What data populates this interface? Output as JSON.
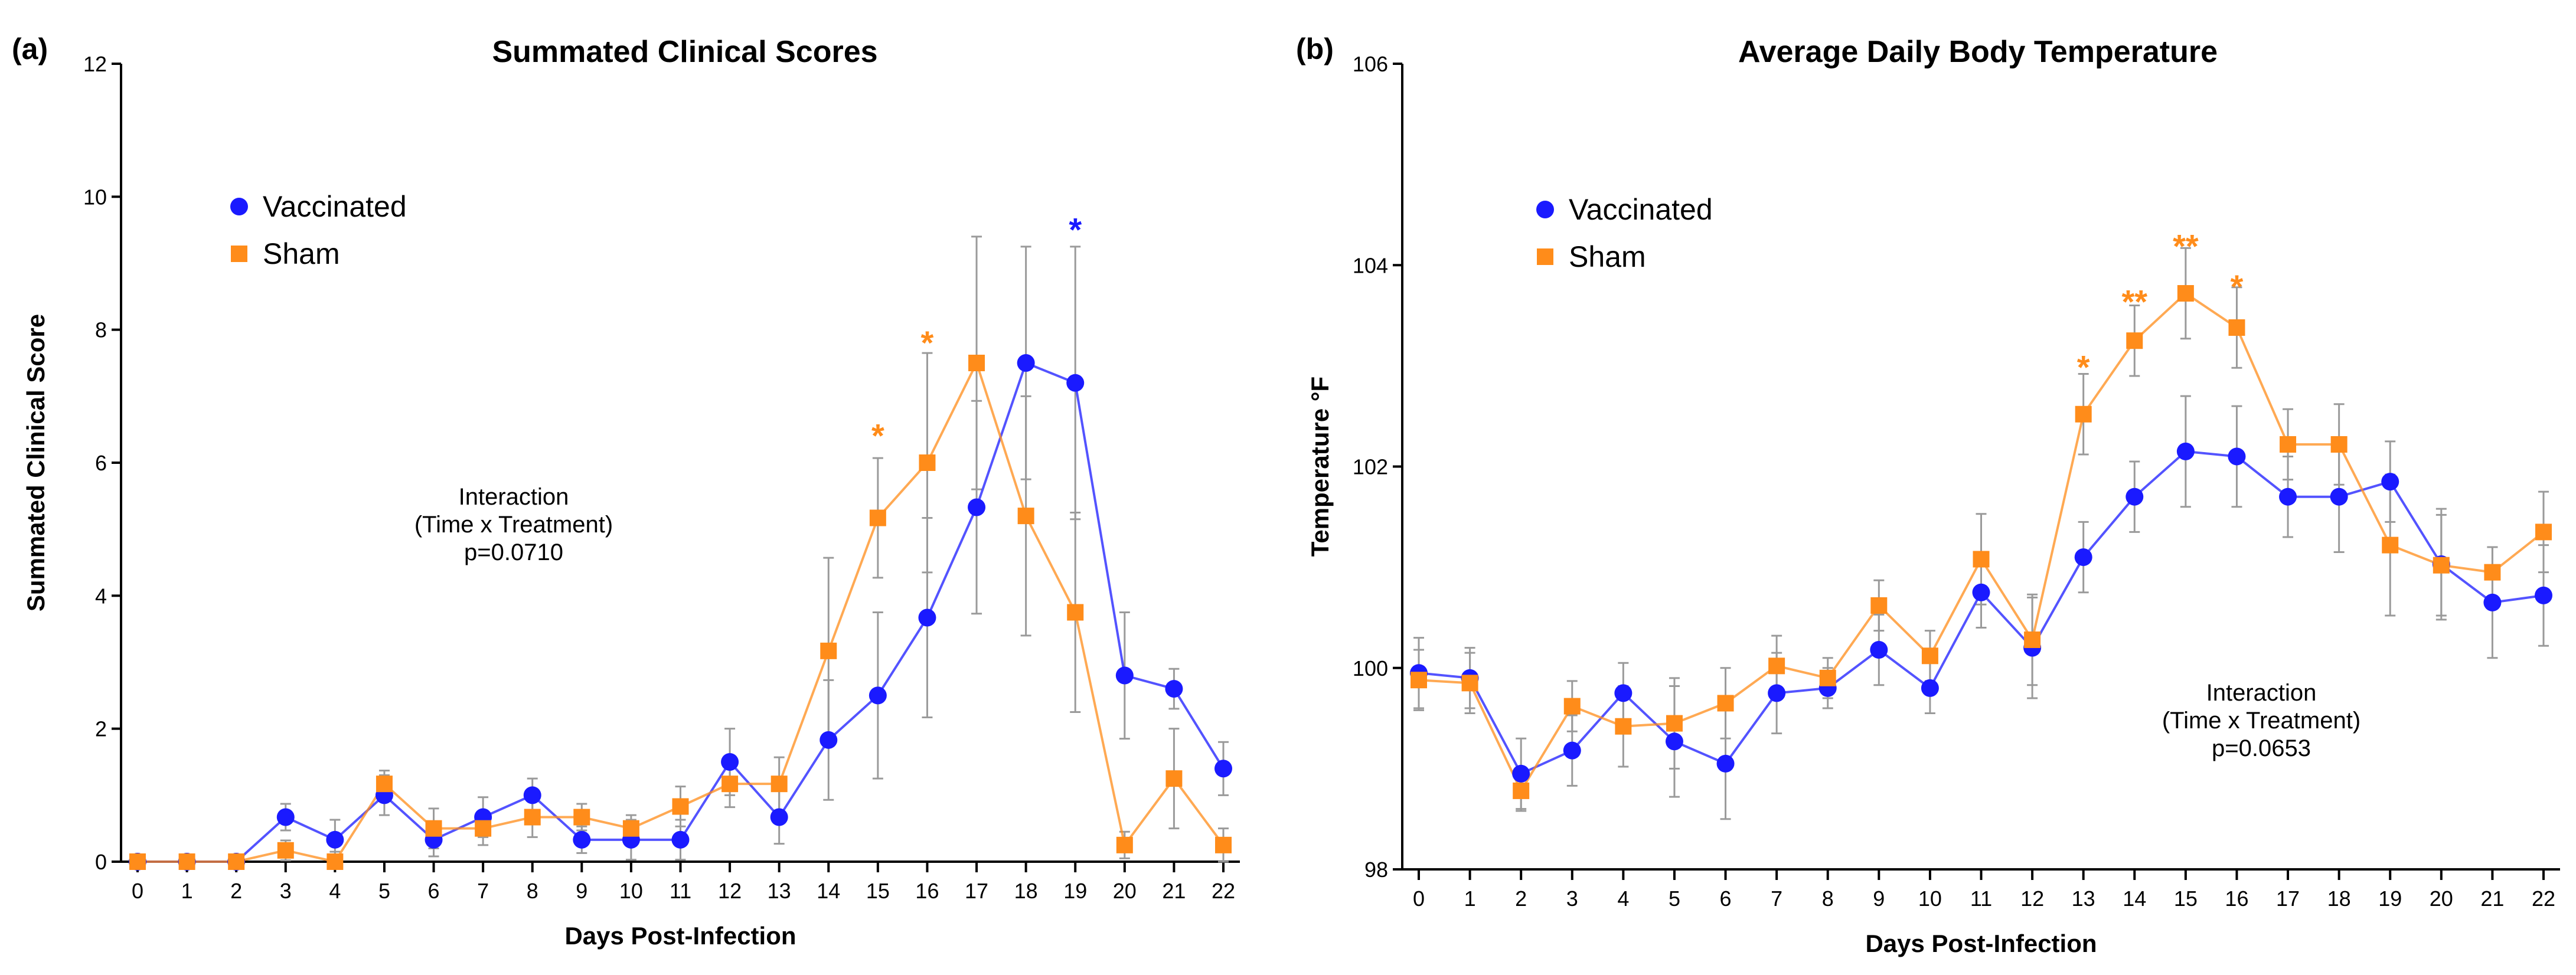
{
  "chart_data": [
    {
      "type": "line",
      "panel": "(a)",
      "title": "Summated Clinical Scores",
      "xlabel": "Days Post-Infection",
      "ylabel": "Summated Clinical Score",
      "x": [
        0,
        1,
        2,
        3,
        4,
        5,
        6,
        7,
        8,
        9,
        10,
        11,
        12,
        13,
        14,
        15,
        16,
        17,
        18,
        19,
        20,
        21,
        22
      ],
      "xlim": [
        0,
        22
      ],
      "ylim": [
        0,
        12
      ],
      "yticks": [
        0,
        2,
        4,
        6,
        8,
        10,
        12
      ],
      "series": [
        {
          "name": "Vaccinated",
          "color": "#1a1aff",
          "marker": "circle",
          "values": [
            0,
            0,
            0,
            0.67,
            0.33,
            1.0,
            0.33,
            0.67,
            1.0,
            0.33,
            0.33,
            0.33,
            1.5,
            0.67,
            1.83,
            2.5,
            3.67,
            5.33,
            7.5,
            7.2,
            2.8,
            2.6,
            1.4
          ],
          "errors": [
            0,
            0,
            0,
            0.2,
            0.3,
            0.3,
            0.25,
            0.3,
            0.25,
            0.2,
            0.3,
            0.3,
            0.5,
            0.4,
            0.9,
            1.25,
            1.5,
            1.6,
            1.75,
            2.05,
            0.95,
            0.3,
            0.4
          ]
        },
        {
          "name": "Sham",
          "color": "#ff8c1a",
          "marker": "square",
          "values": [
            0,
            0,
            0,
            0.17,
            0,
            1.17,
            0.5,
            0.5,
            0.67,
            0.67,
            0.5,
            0.83,
            1.17,
            1.17,
            3.17,
            5.17,
            6.0,
            7.5,
            5.2,
            3.75,
            0.25,
            1.25,
            0.25
          ],
          "errors": [
            0,
            0,
            0,
            0.15,
            0.15,
            0.2,
            0.3,
            0.25,
            0.3,
            0.2,
            0.2,
            0.3,
            0.35,
            0.4,
            1.4,
            0.9,
            1.65,
            1.9,
            1.8,
            1.5,
            0.2,
            0.75,
            0.25
          ]
        }
      ],
      "significance": [
        {
          "x": 15,
          "y": 6.5,
          "text": "*",
          "series": "Sham"
        },
        {
          "x": 16,
          "y": 7.9,
          "text": "*",
          "series": "Sham"
        },
        {
          "x": 19,
          "y": 9.6,
          "text": "*",
          "series": "Vaccinated"
        }
      ],
      "annotation": [
        "Interaction",
        "(Time x Treatment)",
        "p=0.0710"
      ],
      "legend": "top-left"
    },
    {
      "type": "line",
      "panel": "(b)",
      "title": "Average Daily Body Temperature",
      "xlabel": "Days Post-Infection",
      "ylabel": "Temperature °F",
      "x": [
        0,
        1,
        2,
        3,
        4,
        5,
        6,
        7,
        8,
        9,
        10,
        11,
        12,
        13,
        14,
        15,
        16,
        17,
        18,
        19,
        20,
        21,
        22
      ],
      "xlim": [
        0,
        22
      ],
      "ylim": [
        98,
        106
      ],
      "yticks": [
        98,
        100,
        102,
        104,
        106
      ],
      "series": [
        {
          "name": "Vaccinated",
          "color": "#1a1aff",
          "marker": "circle",
          "values": [
            99.95,
            99.9,
            98.95,
            99.18,
            99.75,
            99.27,
            99.05,
            99.75,
            99.8,
            100.18,
            99.8,
            100.75,
            100.2,
            101.1,
            101.7,
            102.15,
            102.1,
            101.7,
            101.7,
            101.85,
            101.03,
            100.65,
            100.72
          ],
          "errors": [
            0.35,
            0.3,
            0.35,
            0.35,
            0.3,
            0.55,
            0.55,
            0.4,
            0.2,
            0.35,
            0.25,
            0.35,
            0.5,
            0.35,
            0.35,
            0.55,
            0.5,
            0.4,
            0.55,
            0.4,
            0.55,
            0.55,
            0.5
          ]
        },
        {
          "name": "Sham",
          "color": "#ff8c1a",
          "marker": "square",
          "values": [
            99.88,
            99.85,
            98.78,
            99.62,
            99.42,
            99.45,
            99.65,
            100.02,
            99.9,
            100.62,
            100.12,
            101.08,
            100.28,
            102.52,
            103.25,
            103.72,
            103.38,
            102.22,
            102.22,
            101.22,
            101.02,
            100.95,
            101.35
          ],
          "errors": [
            0.3,
            0.3,
            0.2,
            0.25,
            0.4,
            0.45,
            0.35,
            0.3,
            0.2,
            0.25,
            0.25,
            0.45,
            0.45,
            0.4,
            0.35,
            0.45,
            0.4,
            0.35,
            0.4,
            0.7,
            0.5,
            0.25,
            0.4
          ]
        }
      ],
      "significance": [
        {
          "x": 13,
          "y": 103.05,
          "text": "*",
          "series": "Sham"
        },
        {
          "x": 14,
          "y": 103.7,
          "text": "**",
          "series": "Sham"
        },
        {
          "x": 15,
          "y": 104.25,
          "text": "**",
          "series": "Sham"
        },
        {
          "x": 16,
          "y": 103.85,
          "text": "*",
          "series": "Sham"
        }
      ],
      "annotation": [
        "Interaction",
        "(Time x Treatment)",
        "p=0.0653"
      ],
      "legend": "top-left"
    }
  ]
}
